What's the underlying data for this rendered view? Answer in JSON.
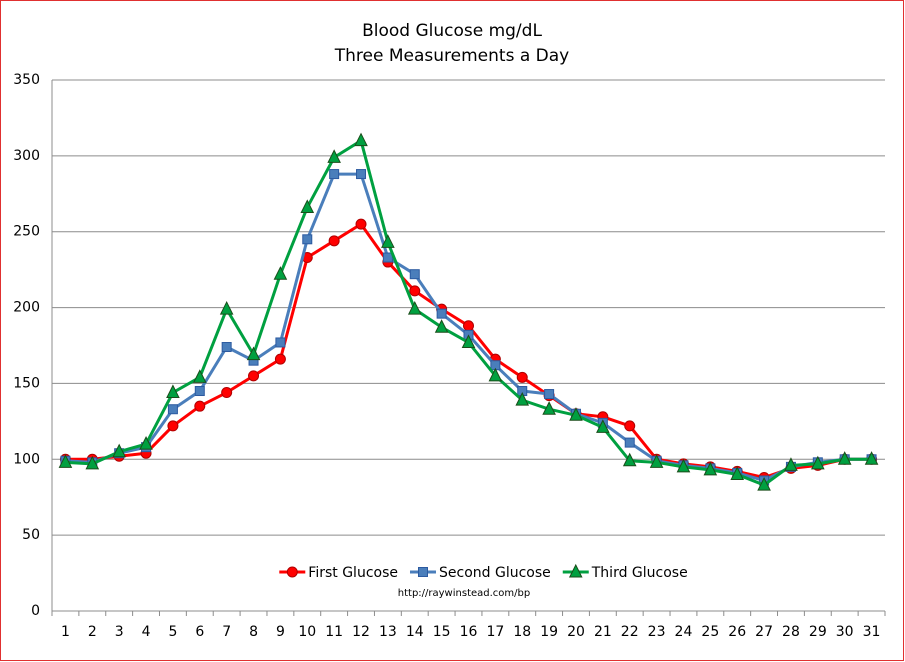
{
  "chart_data": {
    "type": "line",
    "title": "Blood Glucose mg/dL",
    "subtitle": "Three Measurements a Day",
    "annotation": "http://raywinstead.com/bp",
    "categories": [
      "1",
      "2",
      "3",
      "4",
      "5",
      "6",
      "7",
      "8",
      "9",
      "10",
      "11",
      "12",
      "13",
      "14",
      "15",
      "16",
      "17",
      "18",
      "19",
      "20",
      "21",
      "22",
      "23",
      "24",
      "25",
      "26",
      "27",
      "28",
      "29",
      "30",
      "31"
    ],
    "series": [
      {
        "name": "First Glucose",
        "color": "#ff0000",
        "marker": "circle",
        "values": [
          100,
          100,
          102,
          104,
          122,
          135,
          144,
          155,
          166,
          233,
          244,
          255,
          230,
          211,
          199,
          188,
          166,
          154,
          142,
          130,
          128,
          122,
          100,
          97,
          95,
          92,
          88,
          94,
          96,
          100,
          100
        ]
      },
      {
        "name": "Second Glucose",
        "color": "#4a7ebb",
        "marker": "square",
        "values": [
          99,
          98,
          104,
          108,
          133,
          145,
          174,
          165,
          177,
          245,
          288,
          288,
          233,
          222,
          196,
          182,
          162,
          145,
          143,
          130,
          124,
          111,
          99,
          96,
          94,
          91,
          86,
          95,
          98,
          100,
          100
        ]
      },
      {
        "name": "Third Glucose",
        "color": "#00a040",
        "marker": "triangle",
        "values": [
          98,
          97,
          105,
          110,
          144,
          154,
          199,
          169,
          222,
          266,
          299,
          310,
          243,
          199,
          187,
          177,
          155,
          139,
          133,
          129,
          121,
          99,
          98,
          95,
          93,
          90,
          83,
          96,
          97,
          100,
          100
        ]
      }
    ],
    "ylim": [
      0,
      350
    ],
    "yticks": [
      0,
      50,
      100,
      150,
      200,
      250,
      300,
      350
    ],
    "grid": true,
    "legend": "bottom"
  }
}
